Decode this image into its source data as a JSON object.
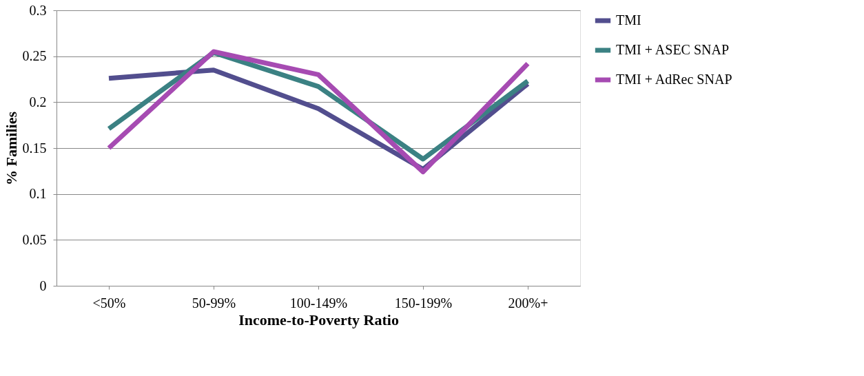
{
  "chart_data": {
    "type": "line",
    "xlabel": "Income-to-Poverty Ratio",
    "ylabel": "% Families",
    "categories": [
      "<50%",
      "50-99%",
      "100-149%",
      "150-199%",
      "200%+"
    ],
    "series": [
      {
        "name": "TMI",
        "color": "#524e8e",
        "values": [
          0.226,
          0.235,
          0.193,
          0.127,
          0.22
        ]
      },
      {
        "name": "TMI + ASEC SNAP",
        "color": "#3b8183",
        "values": [
          0.171,
          0.254,
          0.217,
          0.138,
          0.223
        ]
      },
      {
        "name": "TMI + AdRec SNAP",
        "color": "#a64bb2",
        "values": [
          0.15,
          0.255,
          0.23,
          0.124,
          0.242
        ]
      }
    ],
    "ylim": [
      0,
      0.3
    ],
    "yticks": [
      0,
      0.05,
      0.1,
      0.15,
      0.2,
      0.25,
      0.3
    ],
    "grid": "y",
    "legend": "right",
    "marker": "none",
    "line_style": "solid"
  }
}
